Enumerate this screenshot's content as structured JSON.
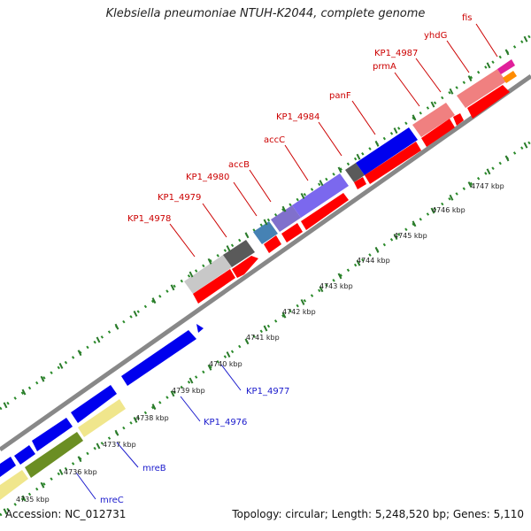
{
  "title": "Klebsiella pneumoniae NTUH-K2044, complete genome",
  "footer": {
    "accession": "Accession: NC_012731",
    "summary": "Topology: circular; Length: 5,248,520 bp; Genes: 5,110"
  },
  "ticks": [
    "4735 kbp",
    "4736 kbp",
    "4737 kbp",
    "4738 kbp",
    "4739 kbp",
    "4740 kbp",
    "4741 kbp",
    "4742 kbp",
    "4743 kbp",
    "4744 kbp",
    "4745 kbp",
    "4746 kbp",
    "4747 kbp"
  ],
  "forward_labels": [
    "KP1_4978",
    "KP1_4979",
    "KP1_4980",
    "accB",
    "accC",
    "KP1_4984",
    "panF",
    "prmA",
    "KP1_4987",
    "yhdG",
    "fis"
  ],
  "reverse_labels": [
    "KP1_4977",
    "KP1_4976",
    "mreB",
    "mreC"
  ],
  "colors": {
    "forward_label": "#cc0000",
    "reverse_label": "#1a1acc",
    "cds": "#ff0000",
    "reverse_cds": "#0000ee",
    "backbone": "#888888",
    "dotted_track": "#2a8a2a"
  }
}
